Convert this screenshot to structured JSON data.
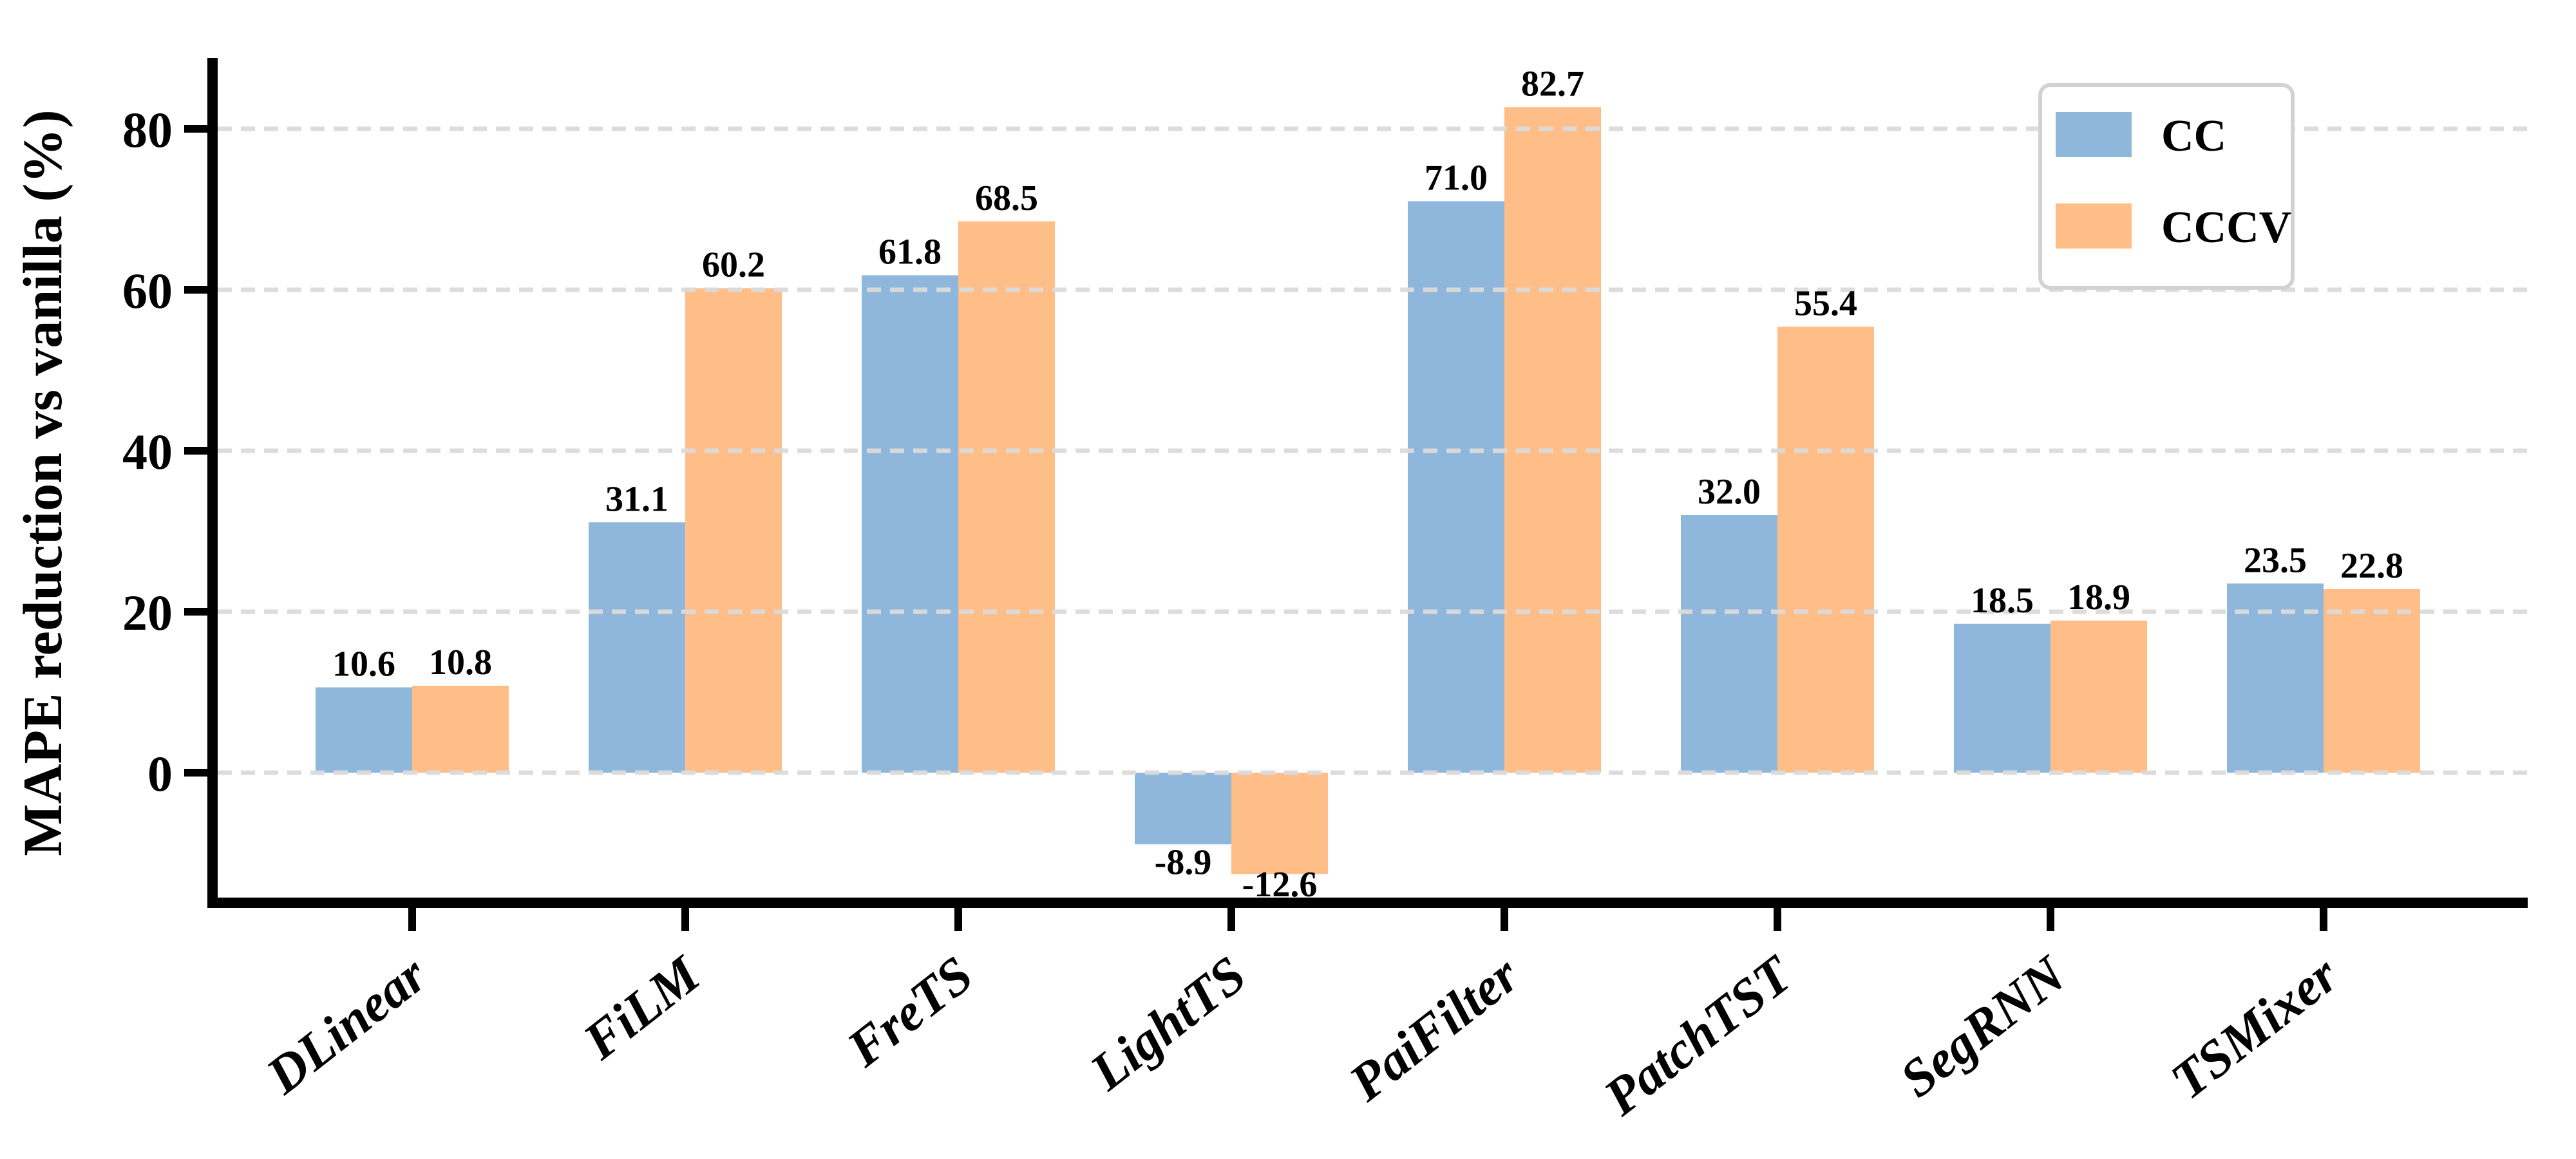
{
  "figure": {
    "background": "#ffffff",
    "axis_color": "#000000"
  },
  "chart_data": {
    "type": "bar",
    "title": "",
    "xlabel": "",
    "ylabel": "MAPE reduction vs vanilla (%)",
    "categories": [
      "DLinear",
      "FiLM",
      "FreTS",
      "LightTS",
      "PaiFilter",
      "PatchTST",
      "SegRNN",
      "TSMixer"
    ],
    "series": [
      {
        "name": "CC",
        "color": "#8FB7DB",
        "values": [
          10.6,
          31.1,
          61.8,
          -8.9,
          71.0,
          32.0,
          18.5,
          23.5
        ],
        "labels": [
          "10.6",
          "31.1",
          "61.8",
          "-8.9",
          "71.0",
          "32.0",
          "18.5",
          "23.5"
        ]
      },
      {
        "name": "CCCV",
        "color": "#FFBE87",
        "values": [
          10.8,
          60.2,
          68.5,
          -12.6,
          82.7,
          55.4,
          18.9,
          22.8
        ],
        "labels": [
          "10.8",
          "60.2",
          "68.5",
          "-12.6",
          "82.7",
          "55.4",
          "18.9",
          "22.8"
        ]
      }
    ],
    "ytick_values": [
      0,
      20,
      40,
      60,
      80
    ],
    "ytick_labels": [
      "0",
      "20",
      "40",
      "60",
      "80"
    ],
    "ylim": [
      -16.8,
      88.8
    ],
    "grid": {
      "axis": "y",
      "style": "dashed",
      "color": "#DBDBDB"
    },
    "legend": {
      "position": "upper-right",
      "entries": [
        "CC",
        "CCCV"
      ],
      "border_color": "#D2D2D2",
      "background": "#ffffff"
    }
  }
}
